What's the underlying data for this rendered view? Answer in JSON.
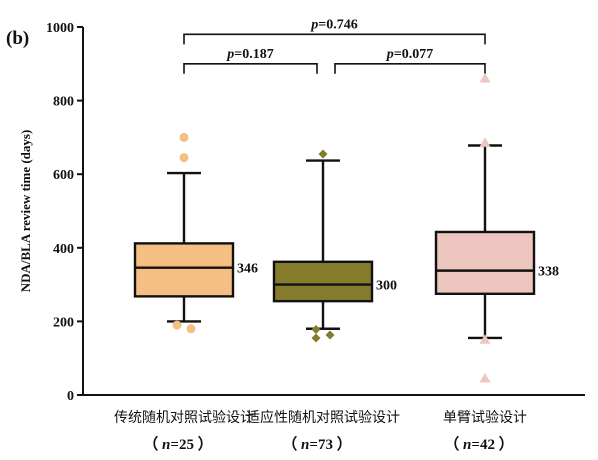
{
  "panel_label": "(b)",
  "chart_data": {
    "type": "box",
    "ylabel": "NDA/BLA review time (days)",
    "ylim": [
      0,
      1000
    ],
    "yticks": [
      0,
      200,
      400,
      600,
      800,
      1000
    ],
    "yticks_text": [
      "0",
      "200",
      "400",
      "600",
      "800",
      "1000"
    ],
    "groups": [
      {
        "label": "传统随机对照试验设计",
        "n_text": "（ n=25 ）",
        "color": "#F5BE82",
        "outlier_shape": "circle",
        "whisker_low": 200,
        "q1": 268,
        "median": 346,
        "q3": 412,
        "whisker_high": 603,
        "median_text": "346",
        "outliers": [
          700,
          645,
          190,
          180
        ]
      },
      {
        "label": "适应性随机对照试验设计",
        "n_text": "（ n=73 ）",
        "color": "#857B2D",
        "outlier_shape": "diamond",
        "whisker_low": 180,
        "q1": 255,
        "median": 300,
        "q3": 362,
        "whisker_high": 637,
        "median_text": "300",
        "outliers": [
          655,
          178,
          163,
          155
        ]
      },
      {
        "label": "单臂试验设计",
        "n_text": "（ n=42 ）",
        "color": "#EDC6C0",
        "outlier_shape": "triangle",
        "whisker_low": 155,
        "q1": 275,
        "median": 338,
        "q3": 443,
        "whisker_high": 678,
        "median_text": "338",
        "outliers": [
          860,
          685,
          150,
          45
        ]
      }
    ],
    "comparisons": [
      {
        "from": 0,
        "to": 2,
        "label": "p=0.746",
        "y": 980
      },
      {
        "from": 0,
        "to": 1,
        "label": "p=0.187",
        "y": 900
      },
      {
        "from": 1,
        "to": 2,
        "label": "p=0.077",
        "y": 900
      }
    ]
  }
}
